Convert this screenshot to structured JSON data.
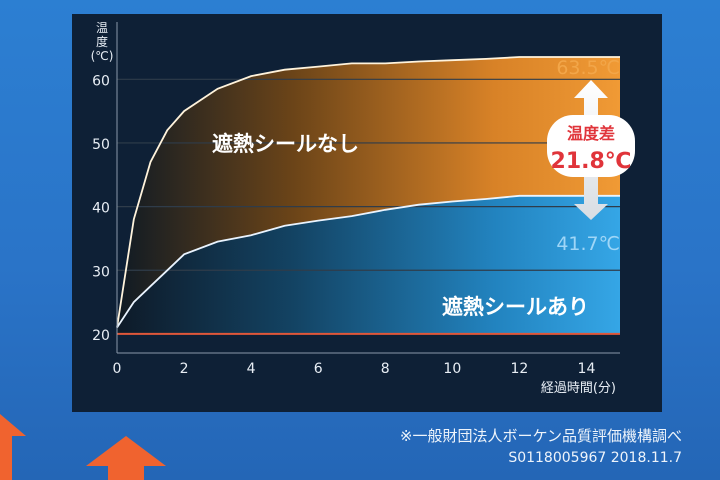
{
  "chart_data": {
    "type": "area",
    "ylabel": "温度(℃)",
    "xlabel": "経過時間(分)",
    "xlim": [
      0,
      15
    ],
    "ylim": [
      17,
      69
    ],
    "xticks": [
      0,
      2,
      4,
      6,
      8,
      10,
      12,
      14
    ],
    "yticks": [
      20,
      30,
      40,
      50,
      60
    ],
    "grid": true,
    "series": [
      {
        "name": "遮熱シールなし",
        "color": "#e98a2e",
        "x": [
          0,
          0.5,
          1,
          1.5,
          2,
          3,
          4,
          5,
          6,
          7,
          8,
          9,
          10,
          11,
          12,
          13,
          14,
          15
        ],
        "y": [
          21,
          38,
          47,
          52,
          55,
          58.5,
          60.5,
          61.5,
          62,
          62.5,
          62.5,
          62.8,
          63,
          63.2,
          63.5,
          63.5,
          63.5,
          63.5
        ]
      },
      {
        "name": "遮熱シールあり",
        "color": "#2b9fe0",
        "x": [
          0,
          0.5,
          1,
          1.5,
          2,
          3,
          4,
          5,
          6,
          7,
          8,
          9,
          10,
          11,
          12,
          13,
          14,
          15
        ],
        "y": [
          21,
          25,
          27.5,
          30,
          32.5,
          34.5,
          35.5,
          37,
          37.8,
          38.5,
          39.5,
          40.3,
          40.8,
          41.2,
          41.7,
          41.7,
          41.7,
          41.7
        ]
      },
      {
        "name": "",
        "color": "#e0573a",
        "x": [
          0,
          15
        ],
        "y": [
          20,
          20
        ]
      }
    ],
    "annotations": {
      "top_value": "63.5℃",
      "bottom_value": "41.7℃",
      "diff_title": "温度差",
      "diff_value": "21.8℃"
    }
  },
  "footnotes": {
    "source": "※一般財団法人ボーケン品質評価機構調べ",
    "code": "S0118005967 2018.11.7"
  }
}
